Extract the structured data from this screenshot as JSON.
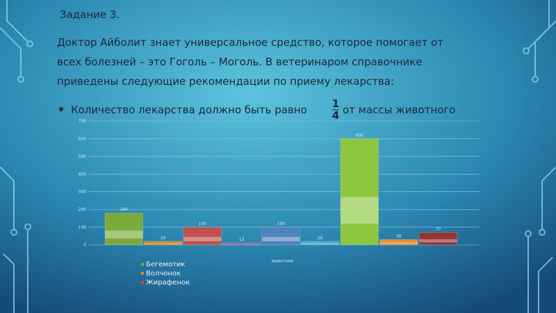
{
  "slide": {
    "title": "Задание 3.",
    "lines": [
      "Доктор Айболит знает универсальное средство, которое помогает от",
      "всех болезней – это Гоголь – Моголь. В ветеринаром справочнике",
      "приведены следующие рекомендации по приему лекарства:"
    ],
    "bullet": {
      "before": "Количество лекарства должно быть равно",
      "numerator": "1",
      "denominator": "4",
      "after": "от массы животного"
    }
  },
  "chart_data": {
    "type": "bar",
    "x_label": "животное",
    "values": [
      180,
      20,
      100,
      12,
      100,
      20,
      600,
      30,
      70
    ],
    "colors": [
      "#7aab3a",
      "#d08a2c",
      "#c0504d",
      "#8064a2",
      "#4f81bd",
      "#4bacc6",
      "#8dc63f",
      "#e8902c",
      "#953735"
    ],
    "legend": [
      "Бегемотик",
      "Волчонок",
      "Жирафенок"
    ],
    "ylim": [
      0,
      700
    ],
    "yticks": [
      0,
      100,
      200,
      300,
      400,
      500,
      600,
      700
    ],
    "grid": true
  }
}
